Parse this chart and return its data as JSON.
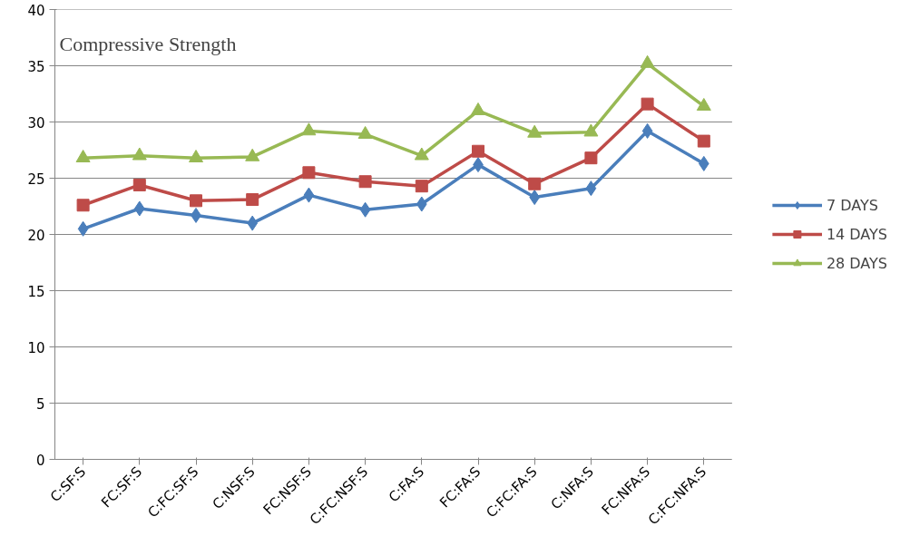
{
  "chart_data": {
    "type": "line",
    "title": "Compressive Strength",
    "categories": [
      "C:SF:S",
      "FC:SF:S",
      "C:FC:SF:S",
      "C:NSF:S",
      "FC:NSF:S",
      "C:FC:NSF:S",
      "C:FA:S",
      "FC:FA:S",
      "C:FC:FA:S",
      "C:NFA:S",
      "FC:NFA:S",
      "C:FC:NFA:S"
    ],
    "series": [
      {
        "name": "7 DAYS",
        "color": "#4a7ebb",
        "marker": "diamond",
        "values": [
          20.5,
          22.3,
          21.7,
          21.0,
          23.5,
          22.2,
          22.7,
          26.2,
          23.3,
          24.1,
          29.2,
          26.3
        ]
      },
      {
        "name": "14 DAYS",
        "color": "#be4b48",
        "marker": "square",
        "values": [
          22.6,
          24.4,
          23.0,
          23.1,
          25.5,
          24.7,
          24.3,
          27.4,
          24.5,
          26.8,
          31.6,
          28.3
        ]
      },
      {
        "name": "28 DAYS",
        "color": "#98b954",
        "marker": "triangle",
        "values": [
          26.8,
          27.0,
          26.8,
          26.9,
          29.2,
          28.9,
          27.0,
          31.0,
          29.0,
          29.1,
          35.2,
          31.4
        ]
      }
    ],
    "ylim": [
      0,
      40
    ],
    "yticks": [
      0,
      5,
      10,
      15,
      20,
      25,
      30,
      35,
      40
    ],
    "grid": "y",
    "legend": "right",
    "line_style": "solid"
  }
}
